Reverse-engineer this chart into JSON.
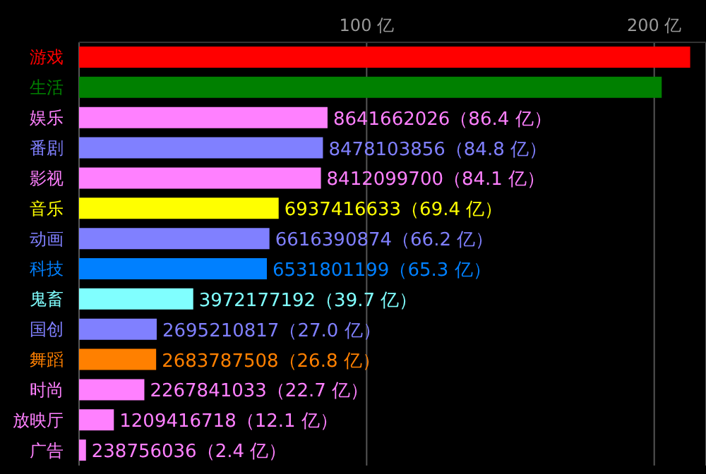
{
  "chart_data": {
    "type": "bar",
    "orientation": "horizontal",
    "categories": [
      "游戏",
      "生活",
      "娱乐",
      "番剧",
      "影视",
      "音乐",
      "动画",
      "科技",
      "鬼畜",
      "国创",
      "舞蹈",
      "时尚",
      "放映厅",
      "广告"
    ],
    "values": [
      212.5,
      202.6,
      86.4,
      84.8,
      84.1,
      69.4,
      66.2,
      65.3,
      39.7,
      27.0,
      26.8,
      22.7,
      12.1,
      2.4
    ],
    "colors": [
      "#ff0000",
      "#008000",
      "#ff80ff",
      "#8080ff",
      "#ff80ff",
      "#ffff00",
      "#8080ff",
      "#0080ff",
      "#80ffff",
      "#8080ff",
      "#ff8000",
      "#ff80ff",
      "#ff80ff",
      "#ff80ff"
    ],
    "value_labels": [
      null,
      null,
      "8641662026（86.4 亿）",
      "8478103856（84.8 亿）",
      "8412099700（84.1 亿）",
      "6937416633（69.4 亿）",
      "6616390874（66.2 亿）",
      "6531801199（65.3 亿）",
      "3972177192（39.7 亿）",
      "2695210817（27.0 亿）",
      "2683787508（26.8 亿）",
      "2267841033（22.7 亿）",
      "1209416718（12.1 亿）",
      "238756036（2.4 亿）"
    ],
    "xlim": [
      0,
      218
    ],
    "xticks": [
      {
        "value": 100,
        "label": "100 亿"
      },
      {
        "value": 200,
        "label": "200 亿"
      }
    ],
    "grid": "x",
    "legend": false
  }
}
